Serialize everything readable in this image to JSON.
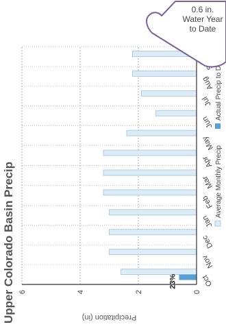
{
  "badge": {
    "line1": "0.6 in.",
    "line2": "Water Year",
    "line3": "to Date",
    "color": "#7a5ea0",
    "fill": "#ffffff"
  },
  "chart_data": {
    "type": "bar",
    "orientation": "rotated 90° counter-clockwise",
    "title": "Upper Colorado Basin Precip",
    "xlabel": "",
    "ylabel": "Precipitation (in)",
    "categories": [
      "Oct",
      "Nov",
      "Dec",
      "Jan",
      "Feb",
      "Mar",
      "Apr",
      "May",
      "Jun",
      "Jul",
      "Aug",
      "Sep"
    ],
    "ylim": [
      0,
      6
    ],
    "yticks": [
      "0",
      "2",
      "4",
      "6"
    ],
    "grid": true,
    "series": [
      {
        "name": "Average Monthly Precip",
        "color": "#dcecf7",
        "edge": "#9fc3de",
        "values": [
          2.6,
          3.0,
          3.0,
          3.0,
          3.2,
          3.2,
          3.2,
          2.4,
          1.4,
          1.9,
          2.2,
          2.2
        ]
      },
      {
        "name": "Actual Precip to Date",
        "color": "#5a9fd4",
        "values": [
          0.6,
          null,
          null,
          null,
          null,
          null,
          null,
          null,
          null,
          null,
          null,
          null
        ]
      }
    ],
    "annotations": [
      {
        "category": "Oct",
        "text": "23%"
      }
    ],
    "legend": "bottom"
  }
}
